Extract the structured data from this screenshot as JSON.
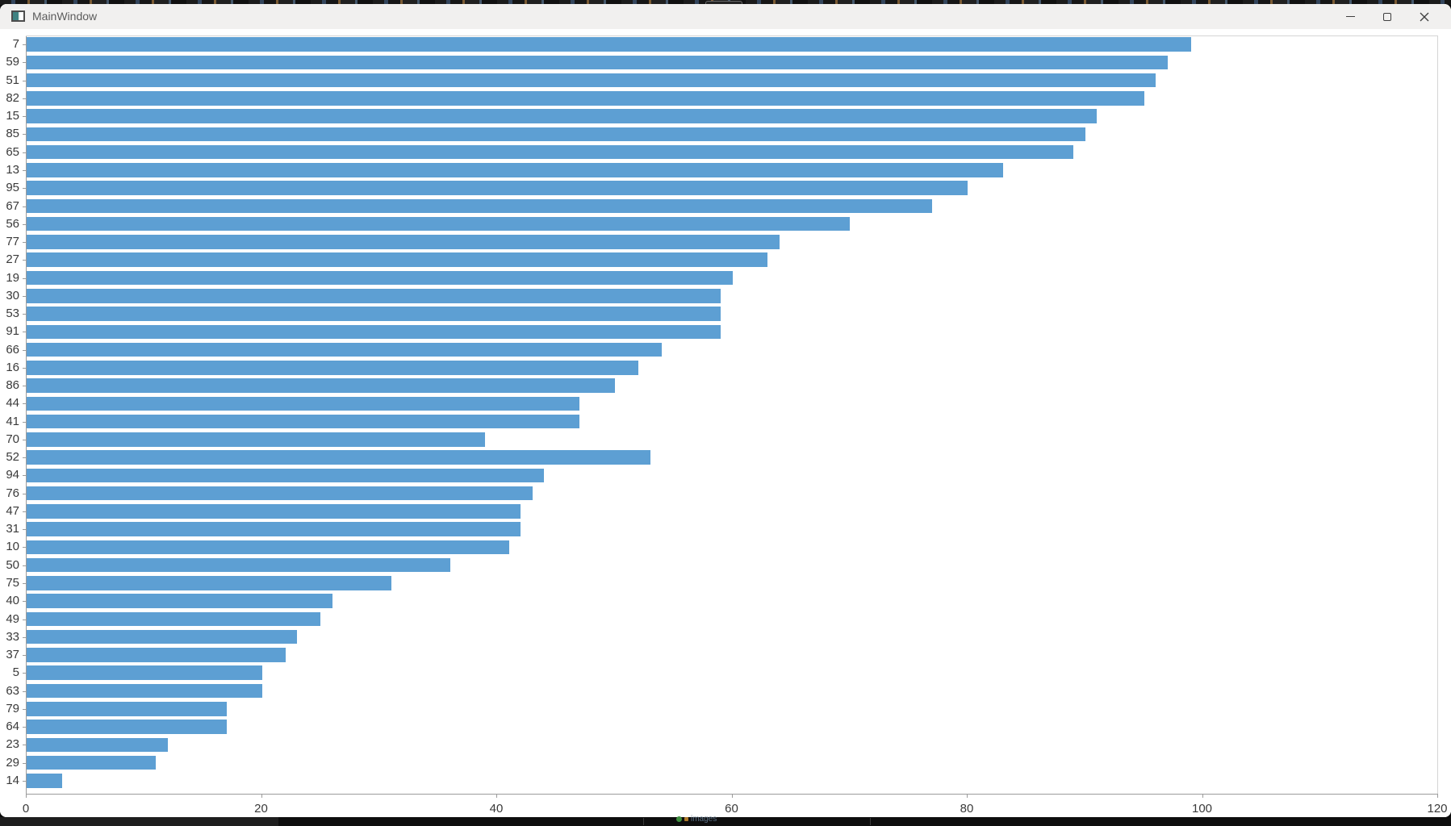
{
  "window": {
    "title": "MainWindow"
  },
  "desktop": {
    "taskbar_hint": "images"
  },
  "chart_data": {
    "type": "bar",
    "orientation": "horizontal",
    "title": "",
    "xlabel": "",
    "ylabel": "",
    "xlim": [
      0,
      120
    ],
    "xticks": [
      0,
      20,
      40,
      60,
      80,
      100,
      120
    ],
    "grid": false,
    "legend": "none",
    "bar_color": "#5d9fd3",
    "categories": [
      7,
      59,
      51,
      82,
      15,
      85,
      65,
      13,
      95,
      67,
      56,
      77,
      27,
      19,
      30,
      53,
      91,
      66,
      16,
      86,
      44,
      41,
      70,
      52,
      94,
      76,
      47,
      31,
      10,
      50,
      75,
      40,
      49,
      33,
      37,
      5,
      63,
      79,
      64,
      23,
      29,
      14
    ],
    "values": [
      99,
      97,
      96,
      95,
      91,
      90,
      89,
      83,
      80,
      77,
      70,
      64,
      63,
      60,
      59,
      59,
      59,
      54,
      52,
      50,
      47,
      47,
      39,
      53,
      44,
      43,
      42,
      42,
      41,
      36,
      31,
      26,
      25,
      23,
      22,
      20,
      20,
      17,
      17,
      12,
      11,
      3
    ]
  }
}
